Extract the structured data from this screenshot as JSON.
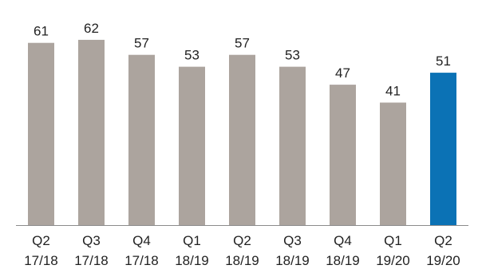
{
  "chart_data": {
    "type": "bar",
    "categories": [
      [
        "Q2",
        "17/18"
      ],
      [
        "Q3",
        "17/18"
      ],
      [
        "Q4",
        "17/18"
      ],
      [
        "Q1",
        "18/19"
      ],
      [
        "Q2",
        "18/19"
      ],
      [
        "Q3",
        "18/19"
      ],
      [
        "Q4",
        "18/19"
      ],
      [
        "Q1",
        "19/20"
      ],
      [
        "Q2",
        "19/20"
      ]
    ],
    "values": [
      61,
      62,
      57,
      53,
      57,
      53,
      47,
      41,
      51
    ],
    "highlight_index": 8,
    "colors": {
      "bar": "#aca49e",
      "highlight": "#0b72b5",
      "axis": "#8c8c8c",
      "text": "#222222"
    },
    "ylim": [
      0,
      70
    ],
    "grid": false,
    "legend": "none",
    "title": "",
    "xlabel": "",
    "ylabel": ""
  }
}
